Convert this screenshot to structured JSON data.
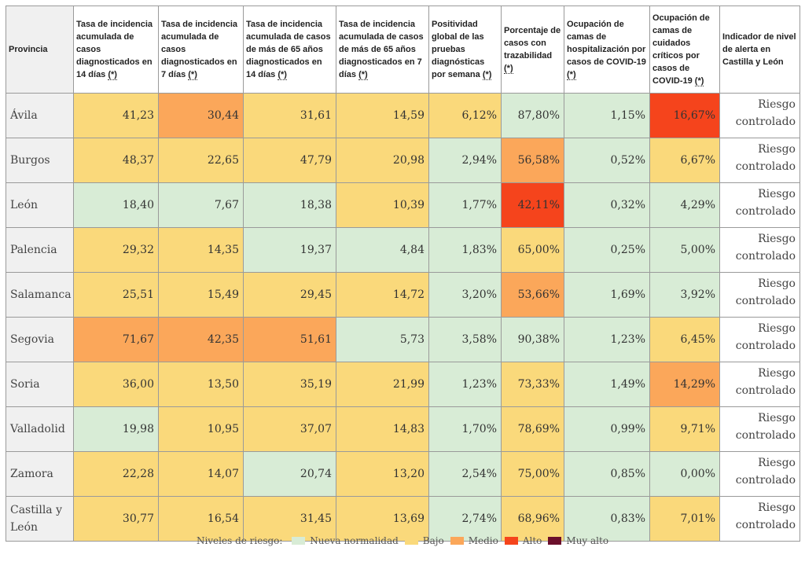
{
  "colors": {
    "normal": "#d8ecd6",
    "bajo": "#fad97b",
    "medio": "#fba75a",
    "alto": "#f5441c",
    "muy_alto": "#6b0f2b"
  },
  "headers": [
    {
      "label": "Provincia",
      "asterisk": ""
    },
    {
      "label": "Tasa de incidencia acumulada de casos diagnosticados en 14 días ",
      "asterisk": "(*)"
    },
    {
      "label": "Tasa de incidencia acumulada de casos diagnosticados en 7 días ",
      "asterisk": "(*)"
    },
    {
      "label": "Tasa de incidencia acumulada de casos de más de 65 años diagnosticados en 14 días ",
      "asterisk": "(*)"
    },
    {
      "label": "Tasa de incidencia acumulada de casos de más de 65 años diagnosticados en 7 días ",
      "asterisk": "(*)"
    },
    {
      "label": "Positividad global de las pruebas diagnósticas por semana ",
      "asterisk": "(*)"
    },
    {
      "label": "Porcentaje de casos con trazabilidad ",
      "asterisk": "(*)"
    },
    {
      "label": "Ocupación de camas de hospitalización por casos de COVID-19 ",
      "asterisk": "(*)"
    },
    {
      "label": "Ocupación de camas de cuidados críticos por casos de COVID-19 ",
      "asterisk": "(*)"
    },
    {
      "label": "Indicador de nivel de alerta en Castilla y León",
      "asterisk": ""
    }
  ],
  "rows": [
    {
      "province": "Ávila",
      "indicator": "Riesgo controlado",
      "cells": [
        {
          "value": "41,23",
          "level": "bajo"
        },
        {
          "value": "30,44",
          "level": "medio"
        },
        {
          "value": "31,61",
          "level": "bajo"
        },
        {
          "value": "14,59",
          "level": "bajo"
        },
        {
          "value": "6,12%",
          "level": "bajo"
        },
        {
          "value": "87,80%",
          "level": "normal"
        },
        {
          "value": "1,15%",
          "level": "normal"
        },
        {
          "value": "16,67%",
          "level": "alto"
        }
      ]
    },
    {
      "province": "Burgos",
      "indicator": "Riesgo controlado",
      "cells": [
        {
          "value": "48,37",
          "level": "bajo"
        },
        {
          "value": "22,65",
          "level": "bajo"
        },
        {
          "value": "47,79",
          "level": "bajo"
        },
        {
          "value": "20,98",
          "level": "bajo"
        },
        {
          "value": "2,94%",
          "level": "normal"
        },
        {
          "value": "56,58%",
          "level": "medio"
        },
        {
          "value": "0,52%",
          "level": "normal"
        },
        {
          "value": "6,67%",
          "level": "bajo"
        }
      ]
    },
    {
      "province": "León",
      "indicator": "Riesgo controlado",
      "cells": [
        {
          "value": "18,40",
          "level": "normal"
        },
        {
          "value": "7,67",
          "level": "normal"
        },
        {
          "value": "18,38",
          "level": "normal"
        },
        {
          "value": "10,39",
          "level": "bajo"
        },
        {
          "value": "1,77%",
          "level": "normal"
        },
        {
          "value": "42,11%",
          "level": "alto"
        },
        {
          "value": "0,32%",
          "level": "normal"
        },
        {
          "value": "4,29%",
          "level": "normal"
        }
      ]
    },
    {
      "province": "Palencia",
      "indicator": "Riesgo controlado",
      "cells": [
        {
          "value": "29,32",
          "level": "bajo"
        },
        {
          "value": "14,35",
          "level": "bajo"
        },
        {
          "value": "19,37",
          "level": "normal"
        },
        {
          "value": "4,84",
          "level": "normal"
        },
        {
          "value": "1,83%",
          "level": "normal"
        },
        {
          "value": "65,00%",
          "level": "bajo"
        },
        {
          "value": "0,25%",
          "level": "normal"
        },
        {
          "value": "5,00%",
          "level": "normal"
        }
      ]
    },
    {
      "province": "Salamanca",
      "indicator": "Riesgo controlado",
      "cells": [
        {
          "value": "25,51",
          "level": "bajo"
        },
        {
          "value": "15,49",
          "level": "bajo"
        },
        {
          "value": "29,45",
          "level": "bajo"
        },
        {
          "value": "14,72",
          "level": "bajo"
        },
        {
          "value": "3,20%",
          "level": "normal"
        },
        {
          "value": "53,66%",
          "level": "medio"
        },
        {
          "value": "1,69%",
          "level": "normal"
        },
        {
          "value": "3,92%",
          "level": "normal"
        }
      ]
    },
    {
      "province": "Segovia",
      "indicator": "Riesgo controlado",
      "cells": [
        {
          "value": "71,67",
          "level": "medio"
        },
        {
          "value": "42,35",
          "level": "medio"
        },
        {
          "value": "51,61",
          "level": "medio"
        },
        {
          "value": "5,73",
          "level": "normal"
        },
        {
          "value": "3,58%",
          "level": "normal"
        },
        {
          "value": "90,38%",
          "level": "normal"
        },
        {
          "value": "1,23%",
          "level": "normal"
        },
        {
          "value": "6,45%",
          "level": "bajo"
        }
      ]
    },
    {
      "province": "Soria",
      "indicator": "Riesgo controlado",
      "cells": [
        {
          "value": "36,00",
          "level": "bajo"
        },
        {
          "value": "13,50",
          "level": "bajo"
        },
        {
          "value": "35,19",
          "level": "bajo"
        },
        {
          "value": "21,99",
          "level": "bajo"
        },
        {
          "value": "1,23%",
          "level": "normal"
        },
        {
          "value": "73,33%",
          "level": "bajo"
        },
        {
          "value": "1,49%",
          "level": "normal"
        },
        {
          "value": "14,29%",
          "level": "medio"
        }
      ]
    },
    {
      "province": "Valladolid",
      "indicator": "Riesgo controlado",
      "cells": [
        {
          "value": "19,98",
          "level": "normal"
        },
        {
          "value": "10,95",
          "level": "bajo"
        },
        {
          "value": "37,07",
          "level": "bajo"
        },
        {
          "value": "14,83",
          "level": "bajo"
        },
        {
          "value": "1,70%",
          "level": "normal"
        },
        {
          "value": "78,69%",
          "level": "bajo"
        },
        {
          "value": "0,99%",
          "level": "normal"
        },
        {
          "value": "9,71%",
          "level": "bajo"
        }
      ]
    },
    {
      "province": "Zamora",
      "indicator": "Riesgo controlado",
      "cells": [
        {
          "value": "22,28",
          "level": "bajo"
        },
        {
          "value": "14,07",
          "level": "bajo"
        },
        {
          "value": "20,74",
          "level": "normal"
        },
        {
          "value": "13,20",
          "level": "bajo"
        },
        {
          "value": "2,54%",
          "level": "normal"
        },
        {
          "value": "75,00%",
          "level": "bajo"
        },
        {
          "value": "0,85%",
          "level": "normal"
        },
        {
          "value": "0,00%",
          "level": "normal"
        }
      ]
    },
    {
      "province": "Castilla y León",
      "indicator": "Riesgo controlado",
      "cells": [
        {
          "value": "30,77",
          "level": "bajo"
        },
        {
          "value": "16,54",
          "level": "bajo"
        },
        {
          "value": "31,45",
          "level": "bajo"
        },
        {
          "value": "13,69",
          "level": "bajo"
        },
        {
          "value": "2,74%",
          "level": "normal"
        },
        {
          "value": "68,96%",
          "level": "bajo"
        },
        {
          "value": "0,83%",
          "level": "normal"
        },
        {
          "value": "7,01%",
          "level": "bajo"
        }
      ]
    }
  ],
  "legend": {
    "title": "Niveles de riesgo:",
    "items": [
      {
        "label": "Nueva normalidad",
        "level": "normal"
      },
      {
        "label": "Bajo",
        "level": "bajo"
      },
      {
        "label": "Medio",
        "level": "medio"
      },
      {
        "label": "Alto",
        "level": "alto"
      },
      {
        "label": "Muy alto",
        "level": "muy_alto"
      }
    ]
  }
}
